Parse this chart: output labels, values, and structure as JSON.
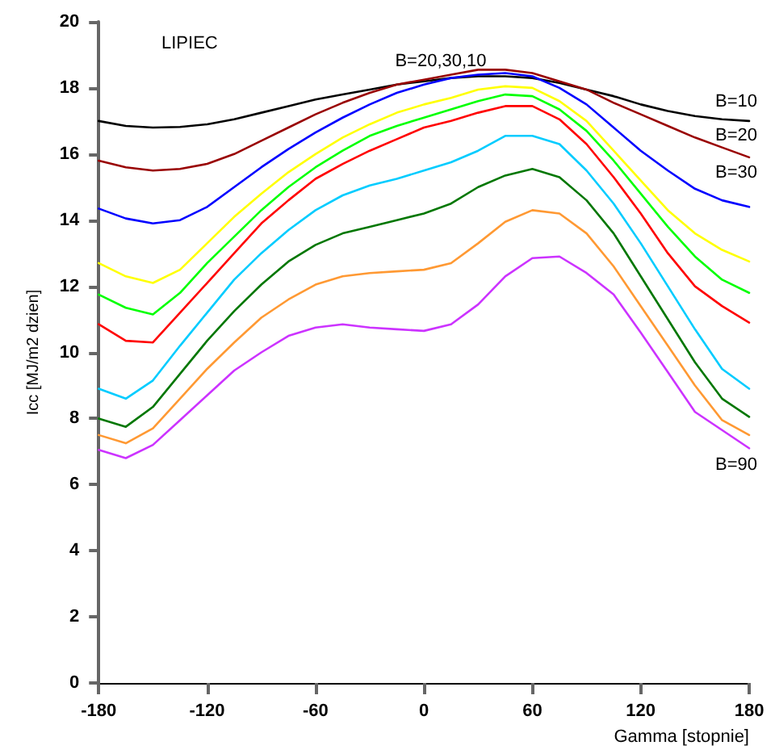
{
  "chart_data": {
    "type": "line",
    "xlabel": "Gamma [stopnie]",
    "ylabel": "Icc [MJ/m2 dzien]",
    "x": [
      -180,
      -165,
      -150,
      -135,
      -120,
      -105,
      -90,
      -75,
      -60,
      -45,
      -30,
      -15,
      0,
      15,
      30,
      45,
      60,
      75,
      90,
      105,
      120,
      135,
      150,
      165,
      180
    ],
    "xlim": [
      -180,
      180
    ],
    "xticks": [
      -180,
      -120,
      -60,
      0,
      60,
      120,
      180
    ],
    "ylim": [
      0,
      20
    ],
    "yticks": [
      0,
      2,
      4,
      6,
      8,
      10,
      12,
      14,
      16,
      18,
      20
    ],
    "grid": false,
    "marker": "none",
    "line_style": "solid",
    "series": [
      {
        "color": "#000000",
        "values": [
          17.0,
          16.85,
          16.8,
          16.82,
          16.9,
          17.05,
          17.25,
          17.45,
          17.65,
          17.8,
          17.95,
          18.1,
          18.2,
          18.3,
          18.35,
          18.35,
          18.3,
          18.15,
          17.95,
          17.75,
          17.5,
          17.3,
          17.15,
          17.05,
          17.0
        ]
      },
      {
        "color": "#990000",
        "values": [
          15.8,
          15.6,
          15.5,
          15.55,
          15.7,
          16.0,
          16.4,
          16.8,
          17.2,
          17.55,
          17.85,
          18.1,
          18.25,
          18.4,
          18.55,
          18.55,
          18.45,
          18.2,
          17.95,
          17.55,
          17.2,
          16.85,
          16.5,
          16.2,
          15.9
        ]
      },
      {
        "color": "#0000ff",
        "values": [
          14.35,
          14.05,
          13.9,
          14.0,
          14.4,
          15.0,
          15.6,
          16.15,
          16.65,
          17.1,
          17.5,
          17.85,
          18.1,
          18.3,
          18.4,
          18.45,
          18.35,
          18.0,
          17.5,
          16.8,
          16.1,
          15.5,
          14.95,
          14.6,
          14.4
        ]
      },
      {
        "color": "#ffff00",
        "values": [
          12.7,
          12.3,
          12.1,
          12.5,
          13.3,
          14.1,
          14.8,
          15.45,
          16.0,
          16.5,
          16.9,
          17.25,
          17.5,
          17.7,
          17.95,
          18.05,
          18.0,
          17.6,
          17.0,
          16.1,
          15.2,
          14.3,
          13.6,
          13.1,
          12.75
        ]
      },
      {
        "color": "#00ff00",
        "values": [
          11.75,
          11.35,
          11.15,
          11.8,
          12.7,
          13.5,
          14.3,
          15.0,
          15.6,
          16.1,
          16.55,
          16.85,
          17.1,
          17.35,
          17.6,
          17.8,
          17.75,
          17.35,
          16.7,
          15.8,
          14.8,
          13.8,
          12.9,
          12.2,
          11.8
        ]
      },
      {
        "color": "#ff0000",
        "values": [
          10.85,
          10.35,
          10.3,
          11.2,
          12.1,
          13.0,
          13.9,
          14.6,
          15.25,
          15.7,
          16.1,
          16.45,
          16.8,
          17.0,
          17.25,
          17.45,
          17.45,
          17.05,
          16.3,
          15.3,
          14.2,
          13.0,
          12.0,
          11.4,
          10.9
        ]
      },
      {
        "color": "#00ccff",
        "values": [
          8.9,
          8.6,
          9.15,
          10.2,
          11.2,
          12.2,
          13.0,
          13.7,
          14.3,
          14.75,
          15.05,
          15.25,
          15.5,
          15.75,
          16.1,
          16.55,
          16.55,
          16.3,
          15.5,
          14.5,
          13.3,
          12.0,
          10.7,
          9.5,
          8.9
        ]
      },
      {
        "color": "#007700",
        "values": [
          8.0,
          7.75,
          8.35,
          9.35,
          10.35,
          11.25,
          12.05,
          12.75,
          13.25,
          13.6,
          13.8,
          14.0,
          14.2,
          14.5,
          15.0,
          15.35,
          15.55,
          15.3,
          14.6,
          13.6,
          12.3,
          11.0,
          9.7,
          8.6,
          8.05
        ]
      },
      {
        "color": "#ff9933",
        "values": [
          7.5,
          7.25,
          7.7,
          8.6,
          9.5,
          10.3,
          11.05,
          11.6,
          12.05,
          12.3,
          12.4,
          12.45,
          12.5,
          12.7,
          13.3,
          13.95,
          14.3,
          14.2,
          13.6,
          12.6,
          11.4,
          10.2,
          9.0,
          7.95,
          7.5
        ]
      },
      {
        "color": "#cc33ff",
        "values": [
          7.05,
          6.8,
          7.2,
          7.95,
          8.7,
          9.45,
          10.0,
          10.5,
          10.75,
          10.85,
          10.75,
          10.7,
          10.65,
          10.85,
          11.45,
          12.3,
          12.85,
          12.9,
          12.4,
          11.75,
          10.6,
          9.4,
          8.2,
          7.65,
          7.1
        ]
      }
    ],
    "annotations": [
      "LIPIEC",
      "B=20,30,10",
      "B=10",
      "B=20",
      "B=30",
      "B=90"
    ]
  }
}
